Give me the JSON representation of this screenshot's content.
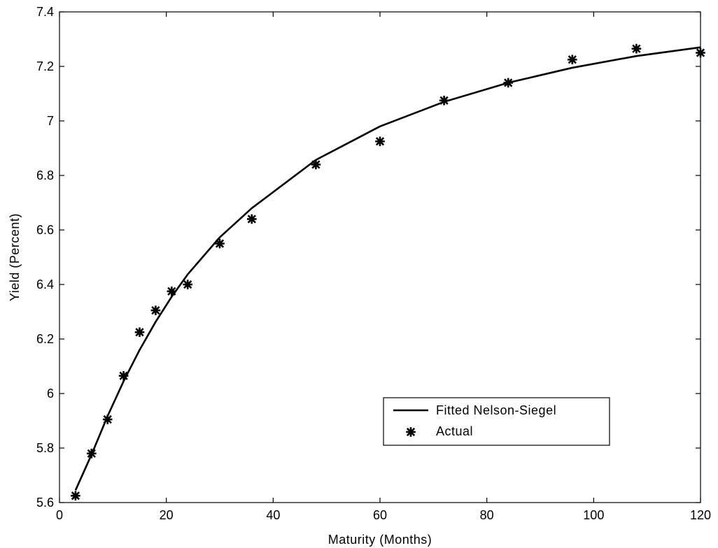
{
  "chart_data": {
    "type": "line",
    "title": "",
    "xlabel": "Maturity (Months)",
    "ylabel": "Yield (Percent)",
    "xlim": [
      0,
      120
    ],
    "ylim": [
      5.6,
      7.4
    ],
    "xticks": [
      0,
      20,
      40,
      60,
      80,
      100,
      120
    ],
    "xtick_labels": [
      "0",
      "20",
      "40",
      "60",
      "80",
      "100",
      "120"
    ],
    "yticks": [
      5.6,
      5.8,
      6.0,
      6.2,
      6.4,
      6.6,
      6.8,
      7.0,
      7.2,
      7.4
    ],
    "ytick_labels": [
      "5.6",
      "5.8",
      "6",
      "6.2",
      "6.4",
      "6.6",
      "6.8",
      "7",
      "7.2",
      "7.4"
    ],
    "grid": false,
    "legend_position": "lower-right",
    "series": [
      {
        "name": "Fitted Nelson-Siegel",
        "style": "line",
        "color": "#000000",
        "x": [
          3,
          6,
          9,
          12,
          15,
          18,
          21,
          24,
          30,
          36,
          48,
          60,
          72,
          84,
          96,
          108,
          120
        ],
        "y": [
          5.645,
          5.776,
          5.917,
          6.045,
          6.16,
          6.263,
          6.355,
          6.437,
          6.573,
          6.68,
          6.857,
          6.98,
          7.07,
          7.14,
          7.195,
          7.238,
          7.27
        ]
      },
      {
        "name": "Actual",
        "style": "markers",
        "marker": "star",
        "color": "#000000",
        "x": [
          3,
          6,
          9,
          12,
          15,
          18,
          21,
          24,
          30,
          36,
          48,
          60,
          72,
          84,
          96,
          108,
          120
        ],
        "y": [
          5.625,
          5.78,
          5.905,
          6.065,
          6.225,
          6.305,
          6.375,
          6.4,
          6.55,
          6.64,
          6.84,
          6.925,
          7.075,
          7.14,
          7.225,
          7.265,
          7.25
        ]
      }
    ]
  }
}
